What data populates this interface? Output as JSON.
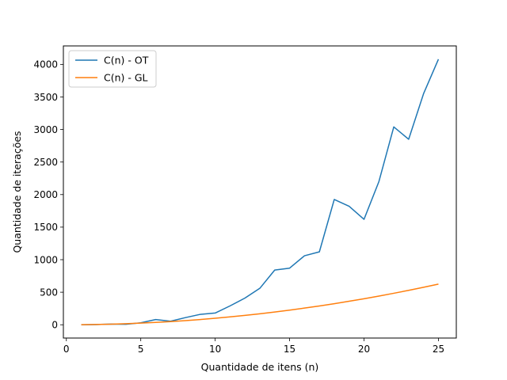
{
  "chart_data": {
    "type": "line",
    "title": "",
    "xlabel": "Quantidade de itens (n)",
    "ylabel": "Quantidade de iterações",
    "xlim": [
      -0.2,
      26.2
    ],
    "ylim": [
      -204,
      4284
    ],
    "xticks": [
      0,
      5,
      10,
      15,
      20,
      25
    ],
    "yticks": [
      0,
      500,
      1000,
      1500,
      2000,
      2500,
      3000,
      3500,
      4000
    ],
    "grid": false,
    "legend": "top-left",
    "series": [
      {
        "name": "C(n) - OT",
        "color": "#1f77b4",
        "x": [
          1,
          2,
          3,
          4,
          5,
          6,
          7,
          8,
          9,
          10,
          11,
          12,
          13,
          14,
          15,
          16,
          17,
          18,
          19,
          20,
          21,
          22,
          23,
          24,
          25
        ],
        "y": [
          0,
          3,
          10,
          8,
          30,
          80,
          55,
          110,
          160,
          180,
          290,
          410,
          560,
          840,
          870,
          1060,
          1120,
          1925,
          1820,
          1620,
          2200,
          3040,
          2850,
          3550,
          4080
        ]
      },
      {
        "name": "C(n) - GL",
        "color": "#ff7f0e",
        "x": [
          1,
          2,
          3,
          4,
          5,
          6,
          7,
          8,
          9,
          10,
          11,
          12,
          13,
          14,
          15,
          16,
          17,
          18,
          19,
          20,
          21,
          22,
          23,
          24,
          25
        ],
        "y": [
          1,
          4,
          9,
          16,
          25,
          36,
          49,
          64,
          81,
          100,
          121,
          144,
          169,
          196,
          225,
          256,
          289,
          324,
          361,
          400,
          441,
          484,
          529,
          576,
          625
        ]
      }
    ]
  }
}
